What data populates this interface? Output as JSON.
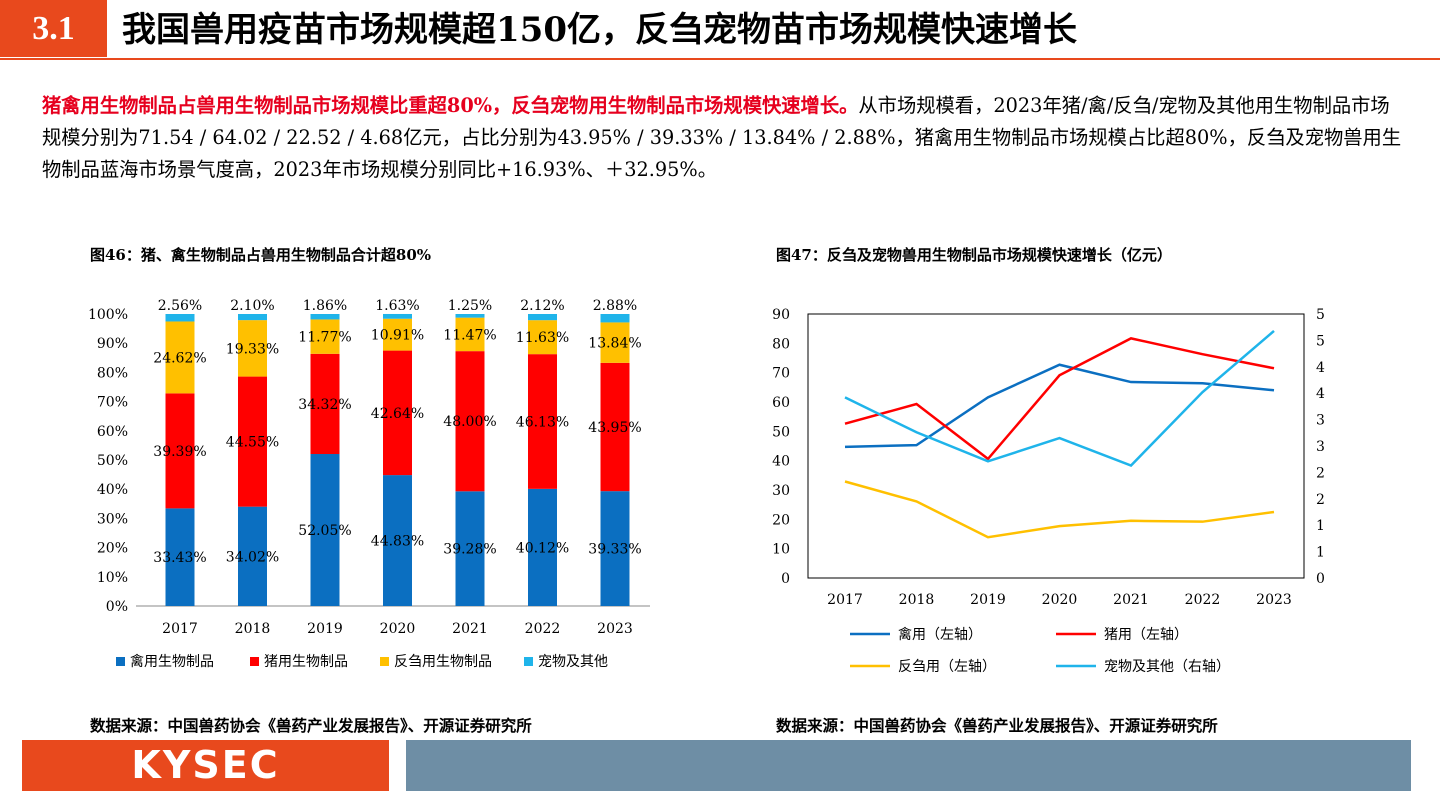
{
  "header": {
    "section_number": "3.1",
    "title": "我国兽用疫苗市场规模超150亿，反刍宠物苗市场规模快速增长"
  },
  "summary": {
    "lead": "猪禽用生物制品占兽用生物制品市场规模比重超80%，反刍宠物用生物制品市场规模快速增长。",
    "body": "从市场规模看，2023年猪/禽/反刍/宠物及其他用生物制品市场规模分别为71.54 / 64.02 / 22.52 / 4.68亿元，占比分别为43.95% / 39.33% / 13.84% / 2.88%，猪禽用生物制品市场规模占比超80%，反刍及宠物兽用生物制品蓝海市场景气度高，2023年市场规模分别同比+16.93%、＋32.95%。"
  },
  "fig46": {
    "title": "图46：猪、禽生物制品占兽用生物制品合计超80%",
    "source": "数据来源：中国兽药协会《兽药产业发展报告》、开源证券研究所"
  },
  "fig47": {
    "title": "图47：反刍及宠物兽用生物制品市场规模快速增长（亿元）",
    "source": "数据来源：中国兽药协会《兽药产业发展报告》、开源证券研究所"
  },
  "footer": {
    "logo": "KYSEC"
  },
  "colors": {
    "accent": "#e8491d",
    "poultry": "#0b6fc1",
    "swine": "#ff0000",
    "ruminant": "#ffc000",
    "pet": "#1fb4ea",
    "footer_bar": "#6e8ea5"
  },
  "chart_data": [
    {
      "type": "bar",
      "stacked": true,
      "categories": [
        "2017",
        "2018",
        "2019",
        "2020",
        "2021",
        "2022",
        "2023"
      ],
      "ylim": [
        0,
        100
      ],
      "yticks": [
        "0%",
        "10%",
        "20%",
        "30%",
        "40%",
        "50%",
        "60%",
        "70%",
        "80%",
        "90%",
        "100%"
      ],
      "legend_position": "bottom",
      "series": [
        {
          "name": "禽用生物制品",
          "color": "#0b6fc1",
          "values": [
            33.43,
            34.02,
            52.05,
            44.83,
            39.28,
            40.12,
            39.33
          ],
          "labels": [
            "33.43%",
            "34.02%",
            "52.05%",
            "44.83%",
            "39.28%",
            "40.12%",
            "39.33%"
          ]
        },
        {
          "name": "猪用生物制品",
          "color": "#ff0000",
          "values": [
            39.39,
            44.55,
            34.32,
            42.64,
            48.0,
            46.13,
            43.95
          ],
          "labels": [
            "39.39%",
            "44.55%",
            "34.32%",
            "42.64%",
            "48.00%",
            "46.13%",
            "43.95%"
          ]
        },
        {
          "name": "反刍用生物制品",
          "color": "#ffc000",
          "values": [
            24.62,
            19.33,
            11.77,
            10.91,
            11.47,
            11.63,
            13.84
          ],
          "labels": [
            "24.62%",
            "19.33%",
            "11.77%",
            "10.91%",
            "11.47%",
            "11.63%",
            "13.84%"
          ]
        },
        {
          "name": "宠物及其他",
          "color": "#1fb4ea",
          "values": [
            2.56,
            2.1,
            1.86,
            1.63,
            1.25,
            2.12,
            2.88
          ],
          "labels": [
            "2.56%",
            "2.10%",
            "1.86%",
            "1.63%",
            "1.25%",
            "2.12%",
            "2.88%"
          ]
        }
      ]
    },
    {
      "type": "line",
      "x": [
        "2017",
        "2018",
        "2019",
        "2020",
        "2021",
        "2022",
        "2023"
      ],
      "ylim_left": [
        0,
        90
      ],
      "yticks_left": [
        "0",
        "10",
        "20",
        "30",
        "40",
        "50",
        "60",
        "70",
        "80",
        "90"
      ],
      "ylim_right": [
        0,
        5
      ],
      "yticks_right": [
        "0",
        "1",
        "1",
        "2",
        "2",
        "3",
        "3",
        "4",
        "4",
        "5",
        "5"
      ],
      "legend_position": "bottom",
      "series": [
        {
          "name": "禽用（左轴）",
          "axis": "left",
          "color": "#0b6fc1",
          "values": [
            44.7,
            45.3,
            61.6,
            72.7,
            66.8,
            66.4,
            64.0
          ]
        },
        {
          "name": "猪用（左轴）",
          "axis": "left",
          "color": "#ff0000",
          "values": [
            52.6,
            59.3,
            40.6,
            69.1,
            81.7,
            76.3,
            71.5
          ]
        },
        {
          "name": "反刍用（左轴）",
          "axis": "left",
          "color": "#ffc000",
          "values": [
            32.9,
            26.1,
            13.9,
            17.7,
            19.5,
            19.2,
            22.5
          ]
        },
        {
          "name": "宠物及其他（右轴）",
          "axis": "right",
          "color": "#1fb4ea",
          "values": [
            3.42,
            2.76,
            2.21,
            2.65,
            2.13,
            3.52,
            4.68
          ]
        }
      ]
    }
  ]
}
